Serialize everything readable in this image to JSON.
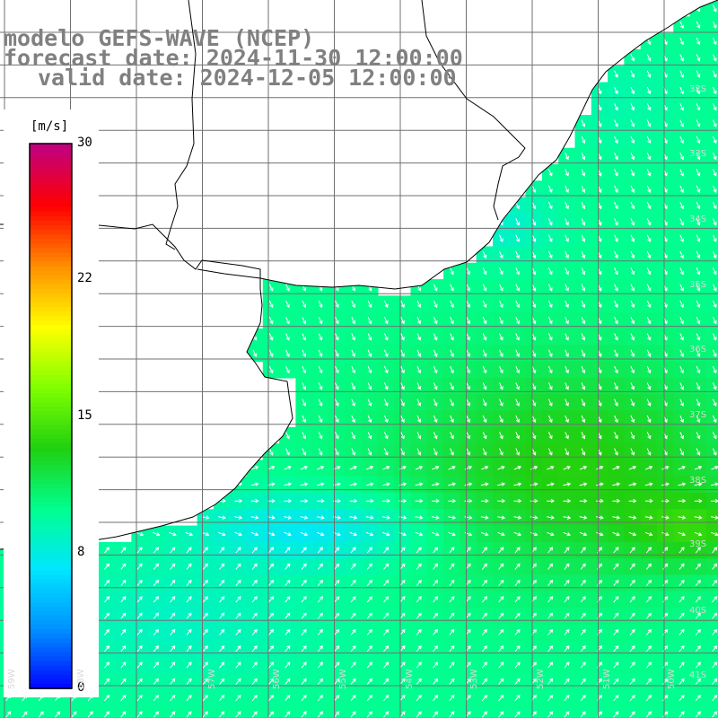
{
  "title": {
    "model": "modelo GEFS-WAVE (NCEP)",
    "forecast_date": "forecast date: 2024-11-30 12:00:00",
    "valid_date": "valid date: 2024-12-05 12:00:00"
  },
  "colorbar": {
    "units": "[m/s]",
    "ticks": [
      "30",
      "22",
      "15",
      "8",
      "0"
    ],
    "tick_values": [
      30,
      22,
      15,
      8,
      0
    ],
    "colors": [
      "#0000ff",
      "#0090ff",
      "#00e6ff",
      "#00ff90",
      "#20d010",
      "#80ff00",
      "#ffff00",
      "#ff9000",
      "#ff0000",
      "#c00080"
    ]
  },
  "map": {
    "land_color": "#ffffff",
    "grid_color": "#707070",
    "coastline_color": "#000000",
    "lat_labels": [
      "32S",
      "33S",
      "34S",
      "35S",
      "36S",
      "37S",
      "38S",
      "39S",
      "40S",
      "41S"
    ],
    "lon_labels": [
      "59W",
      "58W",
      "57W",
      "56W",
      "55W",
      "54W",
      "53W",
      "52W",
      "51W",
      "50W"
    ]
  }
}
